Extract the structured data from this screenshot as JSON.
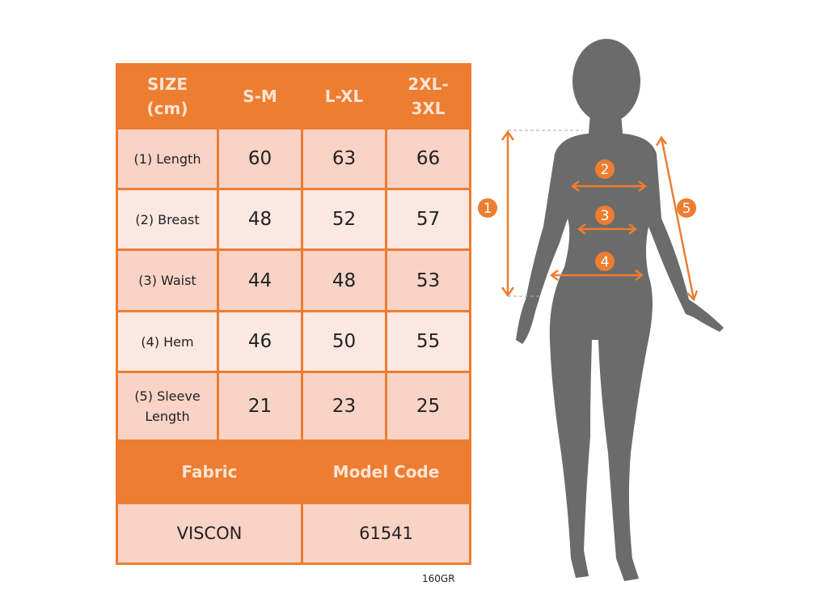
{
  "table": {
    "header": [
      "SIZE\n(cm)",
      "S-M",
      "L-XL",
      "2XL-\n3XL"
    ],
    "rows": [
      {
        "label": "(1) Length",
        "values": [
          "60",
          "63",
          "66"
        ]
      },
      {
        "label": "(2) Breast",
        "values": [
          "48",
          "52",
          "57"
        ]
      },
      {
        "label": "(3) Waist",
        "values": [
          "44",
          "48",
          "53"
        ]
      },
      {
        "label": "(4) Hem",
        "values": [
          "46",
          "50",
          "55"
        ]
      },
      {
        "label": "(5) Sleeve\nLength",
        "values": [
          "21",
          "23",
          "25"
        ]
      }
    ],
    "info_header": [
      "Fabric",
      "Model Code"
    ],
    "info_values": [
      "VISCON",
      "61541"
    ]
  },
  "footer_note": "160GR",
  "figure": {
    "markers": [
      "1",
      "2",
      "3",
      "4",
      "5"
    ]
  },
  "colors": {
    "accent": "#ed7d31",
    "row_dark": "#f8d3c6",
    "row_light": "#fbe8e2",
    "silhouette": "#6b6b6b"
  }
}
